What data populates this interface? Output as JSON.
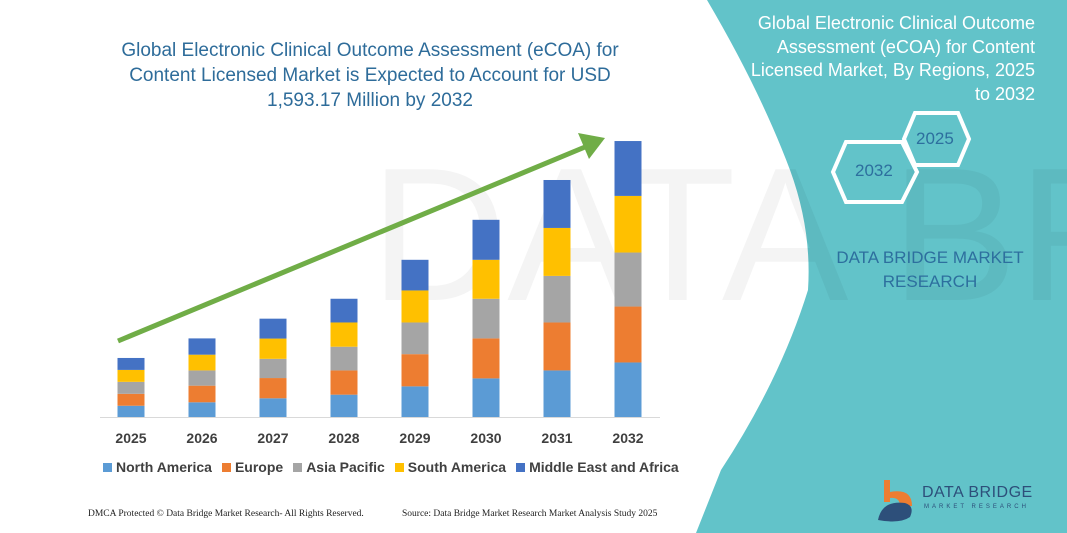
{
  "chart_data": {
    "type": "bar",
    "stacked": true,
    "title": "Global Electronic Clinical Outcome Assessment (eCOA) for Content Licensed Market is Expected to Account for USD 1,593.17 Million by 2032",
    "xlabel": "",
    "ylabel": "",
    "categories": [
      "2025",
      "2026",
      "2027",
      "2028",
      "2029",
      "2030",
      "2031",
      "2032"
    ],
    "series": [
      {
        "name": "North America",
        "color": "#5b9bd5",
        "values": [
          65,
          85,
          108,
          129,
          177,
          223,
          269,
          315
        ]
      },
      {
        "name": "Europe",
        "color": "#ed7d31",
        "values": [
          69,
          96,
          117,
          140,
          186,
          231,
          277,
          323
        ]
      },
      {
        "name": "Asia Pacific",
        "color": "#a5a5a5",
        "values": [
          69,
          88,
          111,
          137,
          183,
          229,
          269,
          312
        ]
      },
      {
        "name": "South America",
        "color": "#ffc000",
        "values": [
          69,
          91,
          117,
          140,
          185,
          225,
          277,
          327
        ]
      },
      {
        "name": "Middle East and Africa",
        "color": "#4472c4",
        "values": [
          69,
          94,
          115,
          137,
          177,
          231,
          277,
          317
        ]
      }
    ],
    "ylim": [
      0,
      1600
    ],
    "grid": false,
    "legend_position": "bottom",
    "trend_arrow_color": "#70ad47"
  },
  "side_panel": {
    "title": "Global Electronic Clinical Outcome Assessment (eCOA) for Content Licensed Market, By Regions, 2025 to 2032",
    "hex_start": "2025",
    "hex_end": "2032",
    "brand": "DATA BRIDGE MARKET RESEARCH",
    "color": "#62c3c9"
  },
  "footer": {
    "copyright": "DMCA Protected © Data Bridge Market Research- All Rights Reserved.",
    "source": "Source: Data Bridge Market Research Market Analysis Study 2025"
  },
  "logo": {
    "name": "DATA BRIDGE",
    "sub": "MARKET RESEARCH"
  }
}
